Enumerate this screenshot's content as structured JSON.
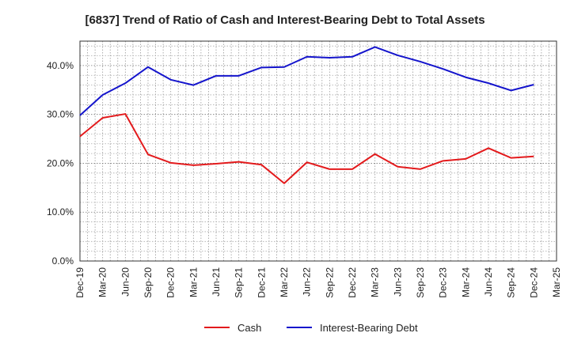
{
  "chart_data": {
    "type": "line",
    "title": "[6837]  Trend of Ratio of Cash and Interest-Bearing Debt to Total Assets",
    "xlabel": "",
    "ylabel": "",
    "ylim": [
      0,
      45
    ],
    "yticks": [
      "0.0%",
      "10.0%",
      "20.0%",
      "30.0%",
      "40.0%"
    ],
    "ytick_values": [
      0,
      10,
      20,
      30,
      40
    ],
    "x_tick_labels": [
      "Dec-19",
      "Mar-20",
      "Jun-20",
      "Sep-20",
      "Dec-20",
      "Mar-21",
      "Jun-21",
      "Sep-21",
      "Dec-21",
      "Mar-22",
      "Jun-22",
      "Sep-22",
      "Dec-22",
      "Mar-23",
      "Jun-23",
      "Sep-23",
      "Dec-23",
      "Mar-24",
      "Jun-24",
      "Sep-24",
      "Dec-24",
      "Mar-25"
    ],
    "x": [
      "Dec-19",
      "Mar-20",
      "Jun-20",
      "Sep-20",
      "Dec-20",
      "Mar-21",
      "Jun-21",
      "Sep-21",
      "Dec-21",
      "Mar-22",
      "Jun-22",
      "Sep-22",
      "Dec-22",
      "Mar-23",
      "Jun-23",
      "Sep-23",
      "Dec-23",
      "Mar-24",
      "Jun-24",
      "Sep-24",
      "Dec-24"
    ],
    "series": [
      {
        "name": "Cash",
        "color": "#e31a1c",
        "values": [
          25.5,
          29.3,
          30.1,
          21.8,
          20.1,
          19.6,
          19.9,
          20.3,
          19.7,
          15.9,
          20.2,
          18.8,
          18.8,
          21.9,
          19.3,
          18.8,
          20.5,
          20.9,
          23.1,
          21.1,
          21.4
        ]
      },
      {
        "name": "Interest-Bearing Debt",
        "color": "#1414cc",
        "values": [
          29.8,
          34.0,
          36.4,
          39.7,
          37.1,
          36.0,
          37.9,
          37.9,
          39.6,
          39.7,
          41.8,
          41.6,
          41.8,
          43.8,
          42.1,
          40.8,
          39.3,
          37.6,
          36.4,
          34.9,
          36.1
        ]
      }
    ],
    "grid": true,
    "legend_position": "bottom-center"
  }
}
